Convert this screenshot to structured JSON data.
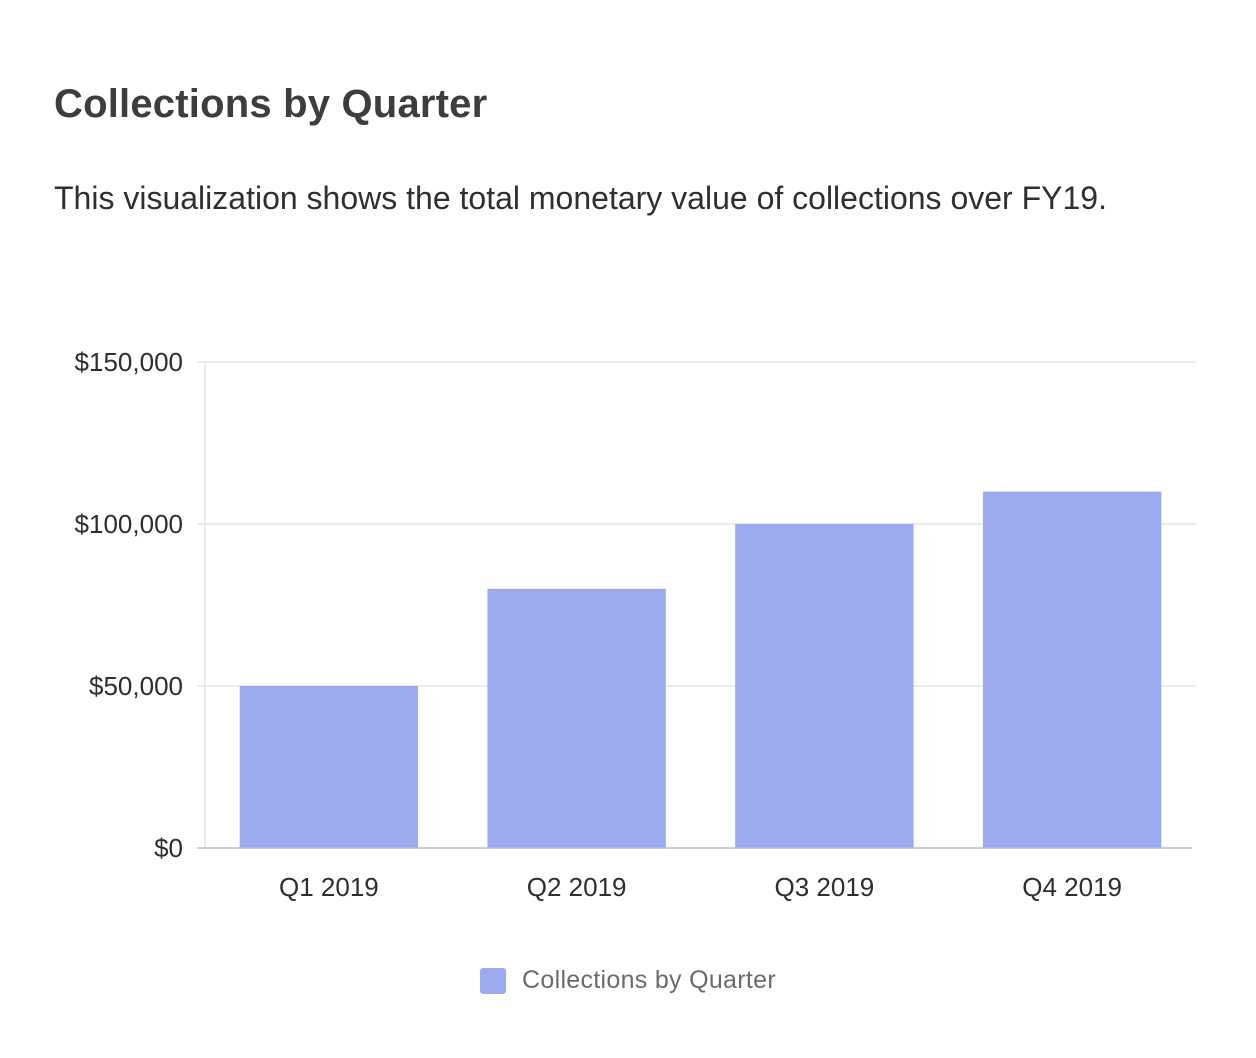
{
  "header": {
    "title": "Collections by Quarter",
    "subtitle": "This visualization shows the total monetary value of collections over FY19."
  },
  "colors": {
    "bar": "#9daaf0",
    "grid": "#e6e6e6",
    "axis": "#bdbdbd"
  },
  "chart_data": {
    "type": "bar",
    "categories": [
      "Q1 2019",
      "Q2 2019",
      "Q3 2019",
      "Q4 2019"
    ],
    "series": [
      {
        "name": "Collections by Quarter",
        "values": [
          50000,
          80000,
          100000,
          110000
        ]
      }
    ],
    "ylim": [
      0,
      150000
    ],
    "yticks": [
      0,
      50000,
      100000,
      150000
    ],
    "ytick_labels": [
      "$0",
      "$50,000",
      "$100,000",
      "$150,000"
    ],
    "xlabel": "",
    "ylabel": "",
    "grid": true,
    "legend": "bottom-center"
  },
  "legend": {
    "label": "Collections by Quarter"
  }
}
